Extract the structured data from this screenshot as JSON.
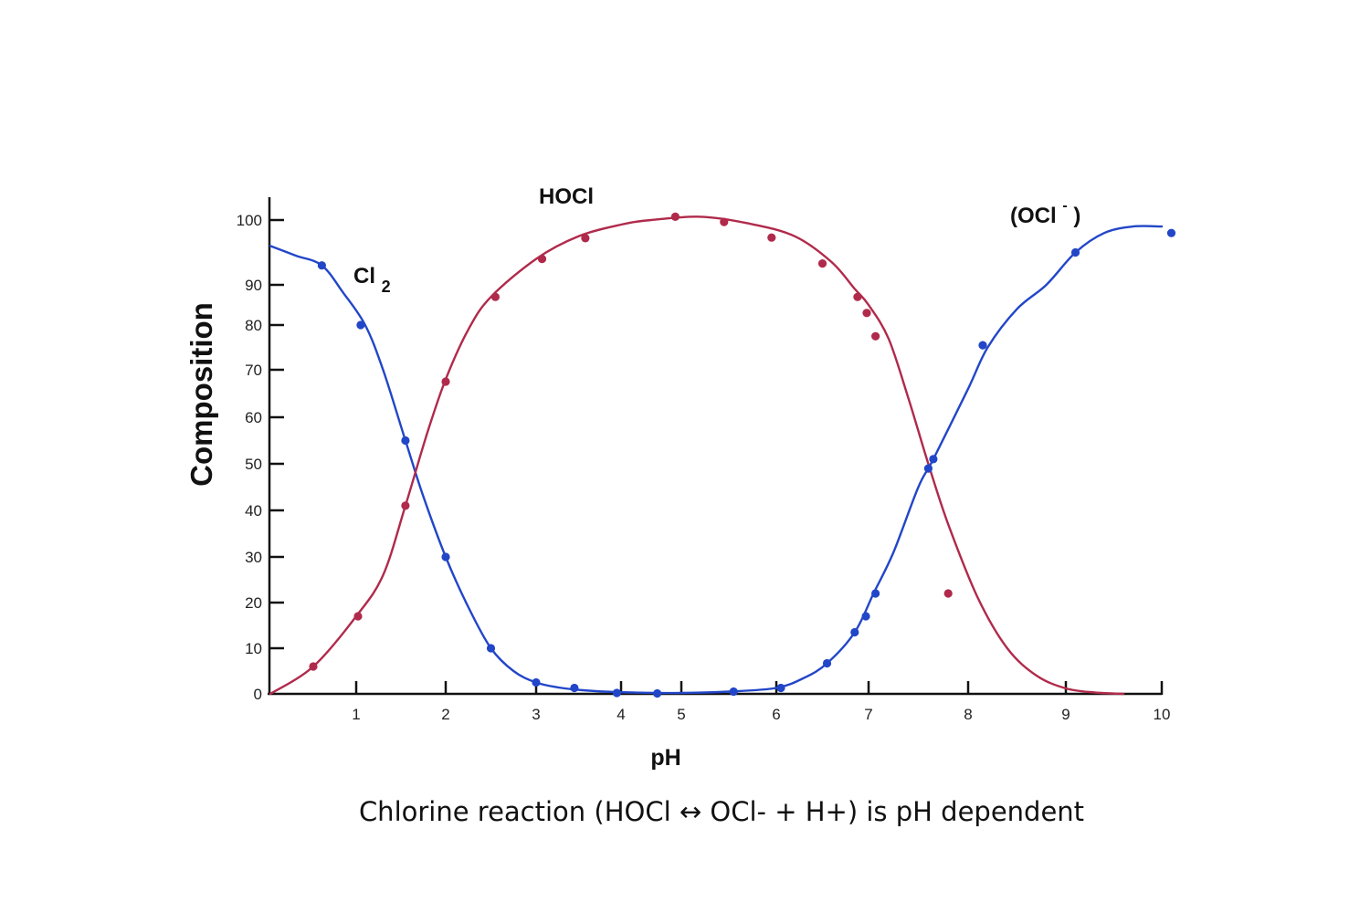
{
  "caption": "Chlorine reaction (HOCl ↔ OCl- + H+) is pH dependent",
  "chart_data": {
    "type": "line",
    "xlabel": "pH",
    "ylabel": "Composition",
    "xlim": [
      0,
      10
    ],
    "ylim": [
      0,
      100
    ],
    "x_ticks": [
      "1",
      "2",
      "3",
      "4",
      "5",
      "6",
      "7",
      "8",
      "9",
      "10"
    ],
    "y_ticks": [
      "0",
      "10",
      "20",
      "30",
      "40",
      "50",
      "60",
      "70",
      "80",
      "90",
      "100"
    ],
    "grid": false,
    "legend": "none",
    "series": [
      {
        "name": "Cl",
        "subscript": "2",
        "color": "#2246c8",
        "curve": [
          [
            0,
            96
          ],
          [
            0.3,
            94.5
          ],
          [
            0.6,
            93
          ],
          [
            0.85,
            88
          ],
          [
            1.1,
            80
          ],
          [
            1.3,
            70
          ],
          [
            1.55,
            55
          ],
          [
            1.75,
            43
          ],
          [
            2.0,
            30
          ],
          [
            2.25,
            19
          ],
          [
            2.5,
            10
          ],
          [
            2.75,
            5
          ],
          [
            3.0,
            2.5
          ],
          [
            3.3,
            1.3
          ],
          [
            3.7,
            0.6
          ],
          [
            4.2,
            0.3
          ],
          [
            5.0,
            0.2
          ],
          [
            5.5,
            0.5
          ],
          [
            6.0,
            1.3
          ],
          [
            6.3,
            3.5
          ],
          [
            6.55,
            6.7
          ],
          [
            6.85,
            13.5
          ],
          [
            7.05,
            22
          ],
          [
            7.25,
            31
          ],
          [
            7.5,
            45
          ],
          [
            7.65,
            51
          ],
          [
            8.0,
            66
          ],
          [
            8.2,
            75
          ],
          [
            8.5,
            84
          ],
          [
            8.8,
            90
          ],
          [
            9.1,
            95
          ],
          [
            9.4,
            98
          ],
          [
            9.7,
            99
          ],
          [
            10.0,
            99
          ]
        ],
        "points": [
          [
            0.6,
            93
          ],
          [
            1.05,
            80
          ],
          [
            1.55,
            55
          ],
          [
            2.0,
            30
          ],
          [
            2.5,
            10
          ],
          [
            3.0,
            2.5
          ],
          [
            3.45,
            1.3
          ],
          [
            3.95,
            0.2
          ],
          [
            4.6,
            0.1
          ],
          [
            5.55,
            0.5
          ],
          [
            6.05,
            1.3
          ],
          [
            6.55,
            6.7
          ],
          [
            6.85,
            13.5
          ],
          [
            6.97,
            17
          ],
          [
            7.07,
            22
          ],
          [
            7.6,
            49
          ],
          [
            7.65,
            51
          ],
          [
            8.15,
            75.5
          ],
          [
            9.1,
            95
          ],
          [
            10.1,
            98
          ]
        ]
      },
      {
        "name": "HOCl",
        "color": "#b02a4b",
        "curve": [
          [
            0,
            0
          ],
          [
            0.5,
            6
          ],
          [
            1.0,
            17
          ],
          [
            1.3,
            26
          ],
          [
            1.55,
            41
          ],
          [
            1.8,
            57
          ],
          [
            2.0,
            68
          ],
          [
            2.25,
            79
          ],
          [
            2.5,
            87
          ],
          [
            3.0,
            94
          ],
          [
            3.5,
            97.5
          ],
          [
            4.0,
            99.3
          ],
          [
            4.5,
            100
          ],
          [
            5.2,
            100.5
          ],
          [
            5.7,
            99.5
          ],
          [
            6.2,
            97.5
          ],
          [
            6.6,
            93.5
          ],
          [
            6.85,
            89
          ],
          [
            7.0,
            85
          ],
          [
            7.2,
            77
          ],
          [
            7.4,
            64
          ],
          [
            7.6,
            50
          ],
          [
            7.8,
            37
          ],
          [
            8.1,
            21
          ],
          [
            8.4,
            10
          ],
          [
            8.7,
            4
          ],
          [
            9.0,
            1.2
          ],
          [
            9.3,
            0.3
          ],
          [
            9.6,
            0
          ]
        ],
        "points": [
          [
            0.5,
            6
          ],
          [
            1.02,
            17
          ],
          [
            1.55,
            41
          ],
          [
            2.0,
            67.5
          ],
          [
            2.55,
            87
          ],
          [
            3.07,
            94
          ],
          [
            3.58,
            97.2
          ],
          [
            4.9,
            100.5
          ],
          [
            5.45,
            99.7
          ],
          [
            5.95,
            97.3
          ],
          [
            6.5,
            93.3
          ],
          [
            6.88,
            87
          ],
          [
            6.98,
            83
          ],
          [
            7.07,
            77.5
          ],
          [
            7.8,
            22
          ]
        ]
      }
    ],
    "annotations": [
      {
        "text": "HOCl",
        "series": "HOCl"
      },
      {
        "text": "Cl",
        "subscript": "2",
        "series": "Cl"
      },
      {
        "text": "(OCl",
        "sup": "-",
        "tail": ")",
        "series": "OCl-"
      }
    ]
  }
}
